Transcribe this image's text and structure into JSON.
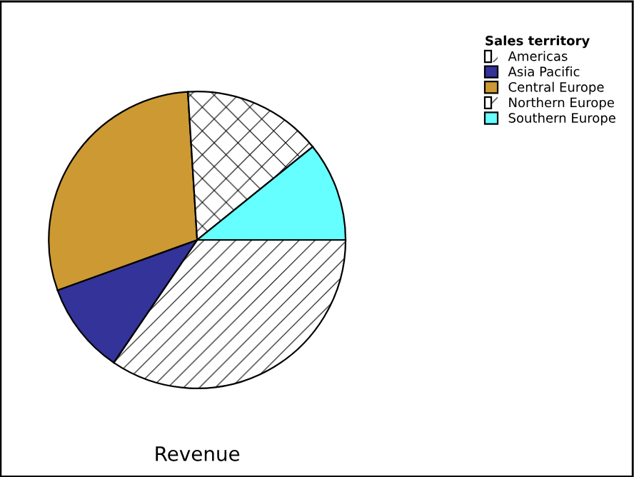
{
  "chart_data": {
    "type": "pie",
    "xlabel": "Revenue",
    "legend_title": "Sales territory",
    "legend": "top right",
    "categories": [
      "Americas",
      "Asia Pacific",
      "Central Europe",
      "Northern Europe",
      "Southern Europe"
    ],
    "values": [
      34.5,
      10,
      29.5,
      15.2,
      10.8
    ],
    "colors": [
      "#ffffff",
      "#333399",
      "#cc9933",
      "#ffffff",
      "#66ffff"
    ]
  }
}
